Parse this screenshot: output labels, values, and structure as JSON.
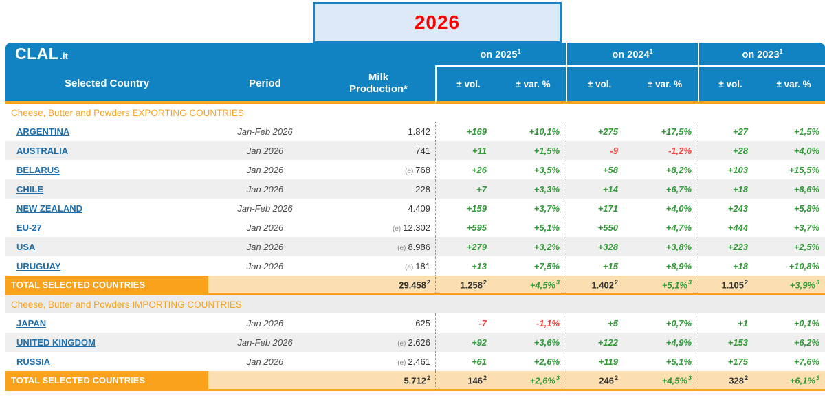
{
  "brand": {
    "logo_main": "CLAL",
    "logo_suffix": ".it"
  },
  "year_box": {
    "label": "2026"
  },
  "header": {
    "country": "Selected Country",
    "period": "Period",
    "milk_line1": "Milk",
    "milk_line2": "Production*",
    "vol": "± vol.",
    "var": "± var. %",
    "year_groups": [
      {
        "label": "on 2025",
        "sup": "1"
      },
      {
        "label": "on 2024",
        "sup": "1"
      },
      {
        "label": "on 2023",
        "sup": "1"
      }
    ]
  },
  "colors": {
    "header_blue": "#1283c2",
    "accent_orange": "#f9a21b",
    "total_peach": "#fbdfb0",
    "row_shade": "#efefef",
    "link_blue": "#1d6fae",
    "positive_green": "#2f9a35",
    "negative_red": "#f2403a",
    "year_red": "#fe0000",
    "year_box_fill": "#dde9f6"
  },
  "sections": [
    {
      "title": "Cheese, Butter and Powders EXPORTING COUNTRIES",
      "shaded": false,
      "rows": [
        {
          "country": "ARGENTINA",
          "period": "Jan-Feb 2026",
          "estimate": "",
          "milk": "1.842",
          "shaded": false,
          "vals": [
            "+169",
            "+10,1%",
            "+275",
            "+17,5%",
            "+27",
            "+1,5%"
          ]
        },
        {
          "country": "AUSTRALIA",
          "period": "Jan 2026",
          "estimate": "",
          "milk": "741",
          "shaded": true,
          "vals": [
            "+11",
            "+1,5%",
            "-9",
            "-1,2%",
            "+28",
            "+4,0%"
          ]
        },
        {
          "country": "BELARUS",
          "period": "Jan 2026",
          "estimate": "(e)",
          "milk": "768",
          "shaded": false,
          "vals": [
            "+26",
            "+3,5%",
            "+58",
            "+8,2%",
            "+103",
            "+15,5%"
          ]
        },
        {
          "country": "CHILE",
          "period": "Jan 2026",
          "estimate": "",
          "milk": "228",
          "shaded": true,
          "vals": [
            "+7",
            "+3,3%",
            "+14",
            "+6,7%",
            "+18",
            "+8,6%"
          ]
        },
        {
          "country": "NEW ZEALAND",
          "period": "Jan-Feb 2026",
          "estimate": "",
          "milk": "4.409",
          "shaded": false,
          "vals": [
            "+159",
            "+3,7%",
            "+171",
            "+4,0%",
            "+243",
            "+5,8%"
          ]
        },
        {
          "country": "EU-27",
          "period": "Jan 2026",
          "estimate": "(e)",
          "milk": "12.302",
          "shaded": false,
          "vals": [
            "+595",
            "+5,1%",
            "+550",
            "+4,7%",
            "+444",
            "+3,7%"
          ]
        },
        {
          "country": "USA",
          "period": "Jan 2026",
          "estimate": "(e)",
          "milk": "8.986",
          "shaded": true,
          "vals": [
            "+279",
            "+3,2%",
            "+328",
            "+3,8%",
            "+223",
            "+2,5%"
          ]
        },
        {
          "country": "URUGUAY",
          "period": "Jan 2026",
          "estimate": "(e)",
          "milk": "181",
          "shaded": false,
          "vals": [
            "+13",
            "+7,5%",
            "+15",
            "+8,9%",
            "+18",
            "+10,8%"
          ]
        }
      ],
      "total": {
        "label": "TOTAL SELECTED COUNTRIES",
        "milk": "29.458",
        "milk_sup": "2",
        "vals": [
          "1.258",
          "+4,5%",
          "1.402",
          "+5,1%",
          "1.105",
          "+3,9%"
        ],
        "sups": [
          "2",
          "3",
          "2",
          "3",
          "2",
          "3"
        ]
      }
    },
    {
      "title": "Cheese, Butter and Powders IMPORTING COUNTRIES",
      "shaded": true,
      "rows": [
        {
          "country": "JAPAN",
          "period": "Jan 2026",
          "estimate": "",
          "milk": "625",
          "shaded": false,
          "vals": [
            "-7",
            "-1,1%",
            "+5",
            "+0,7%",
            "+1",
            "+0,1%"
          ]
        },
        {
          "country": "UNITED KINGDOM",
          "period": "Jan-Feb 2026",
          "estimate": "(e)",
          "milk": "2.626",
          "shaded": true,
          "vals": [
            "+92",
            "+3,6%",
            "+122",
            "+4,9%",
            "+153",
            "+6,2%"
          ]
        },
        {
          "country": "RUSSIA",
          "period": "Jan 2026",
          "estimate": "(e)",
          "milk": "2.461",
          "shaded": false,
          "vals": [
            "+61",
            "+2,6%",
            "+119",
            "+5,1%",
            "+175",
            "+7,6%"
          ]
        }
      ],
      "total": {
        "label": "TOTAL SELECTED COUNTRIES",
        "milk": "5.712",
        "milk_sup": "2",
        "vals": [
          "146",
          "+2,6%",
          "246",
          "+4,5%",
          "328",
          "+6,1%"
        ],
        "sups": [
          "2",
          "3",
          "2",
          "3",
          "2",
          "3"
        ]
      }
    }
  ]
}
